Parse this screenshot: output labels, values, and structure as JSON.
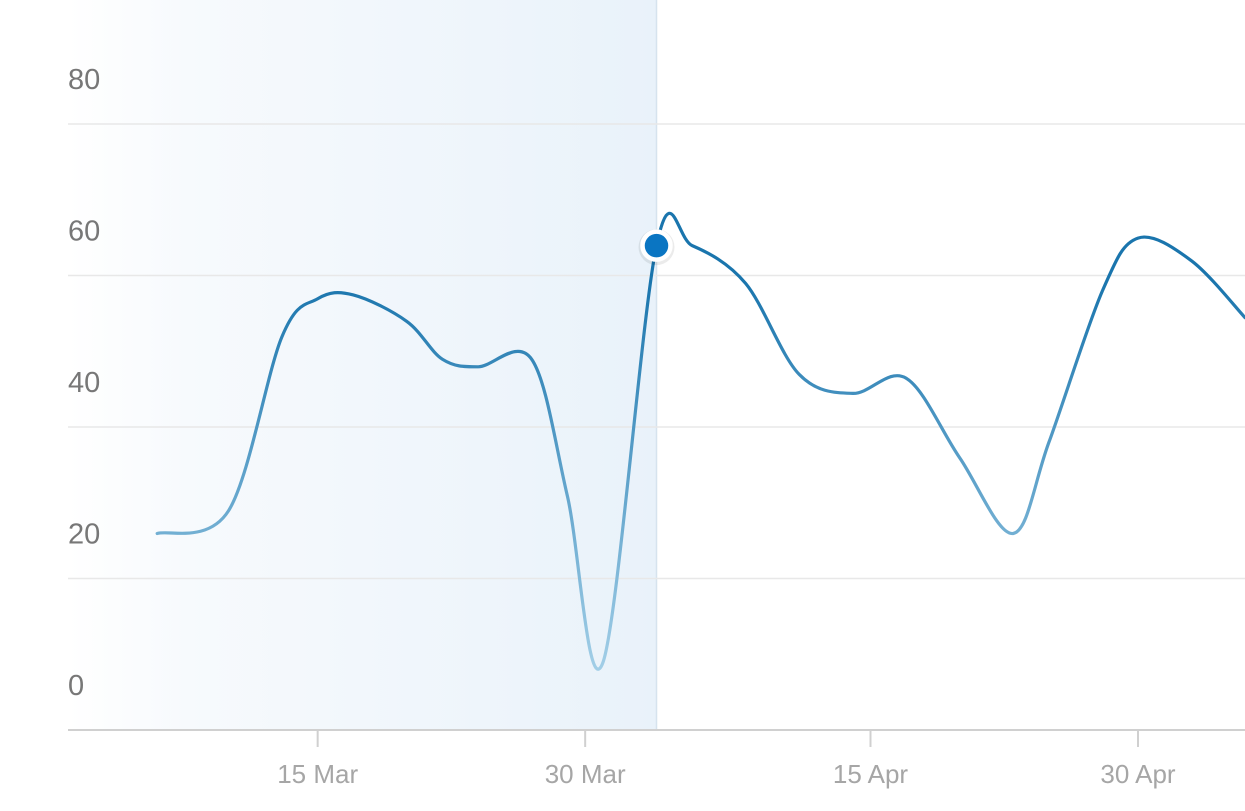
{
  "chart_data": {
    "type": "line",
    "title": "",
    "xlabel": "",
    "ylabel": "",
    "ylim": [
      0,
      80
    ],
    "yticks": [
      0,
      20,
      40,
      60,
      80
    ],
    "xticks": [
      {
        "date": "2024-03-15",
        "label": "15 Mar"
      },
      {
        "date": "2024-03-30",
        "label": "30 Mar"
      },
      {
        "date": "2024-04-15",
        "label": "15 Apr"
      },
      {
        "date": "2024-04-30",
        "label": "30 Apr"
      }
    ],
    "xlim": [
      "2024-03-01",
      "2024-05-06"
    ],
    "grid": true,
    "legend": "none",
    "highlight_range": [
      "2024-03-01",
      "2024-04-03"
    ],
    "highlight_point": {
      "x": "2024-04-03",
      "y": 58
    },
    "colors": {
      "line_dark": "#1a75ad",
      "line_light": "#a9d3ea",
      "highlight": "#e9f2fa",
      "marker": "#0a75c2",
      "grid": "#e8e8e8",
      "axis": "#d0d0d0"
    },
    "series": [
      {
        "x": [
          "2024-03-06",
          "2024-03-10",
          "2024-03-13",
          "2024-03-15",
          "2024-03-17",
          "2024-03-20",
          "2024-03-22",
          "2024-03-24",
          "2024-03-27",
          "2024-03-29",
          "2024-03-31",
          "2024-04-03",
          "2024-04-05",
          "2024-04-08",
          "2024-04-11",
          "2024-04-14",
          "2024-04-17",
          "2024-04-20",
          "2024-04-23",
          "2024-04-25",
          "2024-04-28",
          "2024-04-30",
          "2024-05-03",
          "2024-05-06"
        ],
        "y": [
          20,
          23,
          46,
          51,
          51.5,
          48,
          43,
          42,
          43,
          25,
          3,
          58,
          58,
          53,
          41,
          38.5,
          40.5,
          30,
          20,
          32,
          52,
          59,
          56,
          48.5
        ]
      }
    ]
  }
}
